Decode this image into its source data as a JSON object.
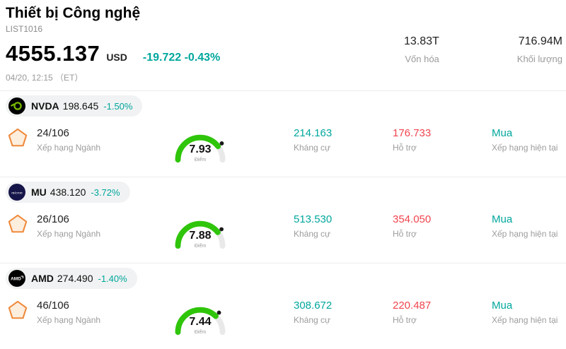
{
  "header": {
    "title": "Thiết bị Công nghệ",
    "list_id": "LIST1016",
    "price": "4555.137",
    "currency": "USD",
    "change": "-19.722 -0.43%",
    "datetime": "04/20, 12:15 （ET）",
    "stats": [
      {
        "value": "13.83T",
        "label": "Vốn hóa"
      },
      {
        "value": "716.94M",
        "label": "Khối lượng"
      }
    ]
  },
  "labels": {
    "industry_rank": "Xếp hạng Ngành",
    "points": "Điểm",
    "resistance": "Kháng cự",
    "support": "Hỗ trợ",
    "current_rating": "Xếp hạng hiện tại"
  },
  "colors": {
    "teal": "#00a79d",
    "red": "#f0454e",
    "gauge_green": "#2fc50a",
    "badge_bg": "#f1f2f3",
    "nvidia_green": "#76b900"
  },
  "gauge": {
    "max": 10
  },
  "stocks": [
    {
      "ticker": "NVDA",
      "price": "198.645",
      "change_pct": "-1.50%",
      "rank": "24/106",
      "score": "7.93",
      "score_value": 7.93,
      "resistance": "214.163",
      "support": "176.733",
      "rating": "Mua",
      "logo": "nvidia-logo",
      "logo_text": ""
    },
    {
      "ticker": "MU",
      "price": "438.120",
      "change_pct": "-3.72%",
      "rank": "26/106",
      "score": "7.88",
      "score_value": 7.88,
      "resistance": "513.530",
      "support": "354.050",
      "rating": "Mua",
      "logo": "micron-logo",
      "logo_text": "micron"
    },
    {
      "ticker": "AMD",
      "price": "274.490",
      "change_pct": "-1.40%",
      "rank": "46/106",
      "score": "7.44",
      "score_value": 7.44,
      "resistance": "308.672",
      "support": "220.487",
      "rating": "Mua",
      "logo": "amd-logo",
      "logo_text": "AMD"
    }
  ]
}
